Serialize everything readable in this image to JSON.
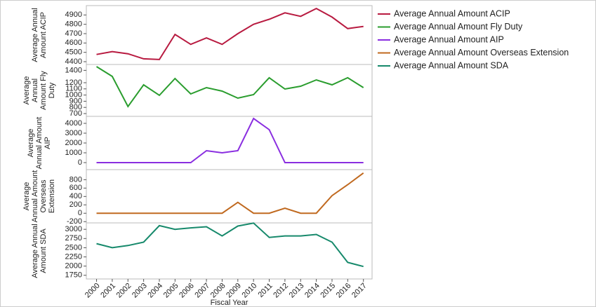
{
  "chart_data": [
    {
      "type": "line",
      "y_label": "Average Annual Amount ACIP",
      "x": [
        2000,
        2001,
        2002,
        2003,
        2004,
        2005,
        2006,
        2007,
        2008,
        2009,
        2010,
        2011,
        2012,
        2013,
        2014,
        2015,
        2016,
        2017
      ],
      "xlim": [
        1999.35,
        2017.55
      ],
      "ylim": [
        4370,
        5000
      ],
      "yticks": [
        4400,
        4500,
        4600,
        4700,
        4800,
        4900
      ],
      "series": [
        {
          "name": "Average Annual Amount ACIP",
          "color": "#b81a40",
          "values": [
            4477,
            4508,
            4485,
            4431,
            4423,
            4692,
            4585,
            4654,
            4585,
            4700,
            4800,
            4854,
            4923,
            4885,
            4969,
            4877,
            4754,
            4777
          ]
        }
      ]
    },
    {
      "type": "line",
      "y_label": "Average Annual Amount Fly Duty",
      "x": [
        2000,
        2001,
        2002,
        2003,
        2004,
        2005,
        2006,
        2007,
        2008,
        2009,
        2010,
        2011,
        2012,
        2013,
        2014,
        2015,
        2016,
        2017
      ],
      "xlim": [
        1999.35,
        2017.55
      ],
      "ylim": [
        655,
        1495
      ],
      "yticks": [
        700,
        800,
        900,
        1000,
        1100,
        1200,
        1400
      ],
      "series": [
        {
          "name": "Average Annual Amount Fly Duty",
          "color": "#2a9d2e",
          "values": [
            1461,
            1302,
            814,
            1166,
            995,
            1268,
            1018,
            1120,
            1064,
            950,
            1007,
            1280,
            1098,
            1143,
            1245,
            1166,
            1280,
            1120
          ]
        }
      ]
    },
    {
      "type": "line",
      "y_label": "Average Annual Amount AIP",
      "x": [
        2000,
        2001,
        2002,
        2003,
        2004,
        2005,
        2006,
        2007,
        2008,
        2009,
        2010,
        2011,
        2012,
        2013,
        2014,
        2015,
        2016,
        2017
      ],
      "xlim": [
        1999.35,
        2017.55
      ],
      "ylim": [
        -714,
        4714
      ],
      "yticks": [
        0,
        1000,
        2000,
        3000,
        4000
      ],
      "series": [
        {
          "name": "Average Annual Amount AIP",
          "color": "#8a2ee0",
          "values": [
            0,
            0,
            0,
            0,
            0,
            0,
            0,
            1214,
            1000,
            1214,
            4500,
            3357,
            0,
            0,
            0,
            0,
            0,
            0
          ]
        }
      ]
    },
    {
      "type": "line",
      "y_label": "Average Annual Amount Overseas Extension",
      "x": [
        2000,
        2001,
        2002,
        2003,
        2004,
        2005,
        2006,
        2007,
        2008,
        2009,
        2010,
        2011,
        2012,
        2013,
        2014,
        2015,
        2016,
        2017
      ],
      "xlim": [
        1999.35,
        2017.55
      ],
      "ylim": [
        -230,
        1040
      ],
      "yticks": [
        -200,
        0,
        200,
        400,
        600,
        800
      ],
      "series": [
        {
          "name": "Average Annual Amount Overseas Extension",
          "color": "#c0691f",
          "values": [
            0,
            0,
            0,
            0,
            0,
            0,
            0,
            0,
            0,
            260,
            0,
            0,
            120,
            0,
            0,
            420,
            680,
            960
          ]
        }
      ]
    },
    {
      "type": "line",
      "y_label": "Average Annual Amount SDA",
      "x_label": "Fiscal Year",
      "x": [
        2000,
        2001,
        2002,
        2003,
        2004,
        2005,
        2006,
        2007,
        2008,
        2009,
        2010,
        2011,
        2012,
        2013,
        2014,
        2015,
        2016,
        2017
      ],
      "xlim": [
        1999.35,
        2017.55
      ],
      "xticks": [
        2000,
        2001,
        2002,
        2003,
        2004,
        2005,
        2006,
        2007,
        2008,
        2009,
        2010,
        2011,
        2012,
        2013,
        2014,
        2015,
        2016,
        2017
      ],
      "ylim": [
        1650,
        3175
      ],
      "yticks": [
        1750,
        2000,
        2250,
        2500,
        2750,
        3000
      ],
      "series": [
        {
          "name": "Average Annual Amount SDA",
          "color": "#16896b",
          "values": [
            2610,
            2500,
            2560,
            2650,
            3100,
            3000,
            3040,
            3070,
            2820,
            3090,
            3170,
            2780,
            2820,
            2820,
            2860,
            2650,
            2100,
            1990
          ]
        }
      ]
    }
  ]
}
